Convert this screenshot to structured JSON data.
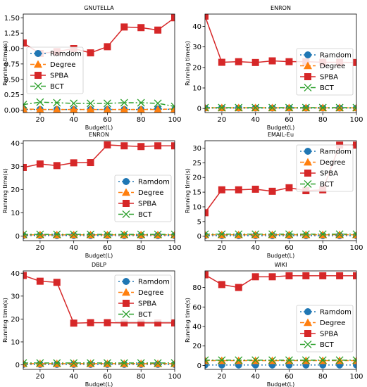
{
  "chart_data": [
    {
      "type": "line",
      "title": "GNUTELLA",
      "xlabel": "Budget(L)",
      "ylabel": "Running time(s)",
      "xlim": [
        10,
        100
      ],
      "ylim": [
        -0.04,
        1.56
      ],
      "x_ticks": [
        20,
        40,
        60,
        80,
        100
      ],
      "y_ticks": [
        0.0,
        0.25,
        0.5,
        0.75,
        1.0,
        1.25,
        1.5
      ],
      "y_tick_labels": [
        "0.00",
        "0.25",
        "0.50",
        "0.75",
        "1.00",
        "1.25",
        "1.50"
      ],
      "legend": "center-left",
      "x": [
        10,
        20,
        30,
        40,
        50,
        60,
        70,
        80,
        90,
        100
      ],
      "series": [
        {
          "name": "Ramdom",
          "values": [
            0.01,
            0.01,
            0.01,
            0.01,
            0.01,
            0.01,
            0.01,
            0.01,
            0.02,
            0.01
          ]
        },
        {
          "name": "Degree",
          "values": [
            0.02,
            0.01,
            0.01,
            0.01,
            0.01,
            0.01,
            0.01,
            0.01,
            0.01,
            0.02
          ]
        },
        {
          "name": "SPBA",
          "values": [
            1.09,
            0.92,
            0.95,
            1.0,
            0.93,
            1.03,
            1.35,
            1.34,
            1.3,
            1.5
          ]
        },
        {
          "name": "BCT",
          "values": [
            0.09,
            0.13,
            0.12,
            0.11,
            0.11,
            0.11,
            0.12,
            0.12,
            0.11,
            0.06
          ]
        }
      ]
    },
    {
      "type": "line",
      "title": "ENRON",
      "xlabel": "Budget(L)",
      "ylabel": "Running time(s)",
      "xlim": [
        10,
        100
      ],
      "ylim": [
        -2,
        46
      ],
      "x_ticks": [
        20,
        40,
        60,
        80,
        100
      ],
      "y_ticks": [
        0,
        10,
        20,
        30,
        40
      ],
      "y_tick_labels": [
        "0",
        "10",
        "20",
        "30",
        "40"
      ],
      "legend": "center-right",
      "x": [
        10,
        20,
        30,
        40,
        50,
        60,
        70,
        80,
        90,
        100
      ],
      "series": [
        {
          "name": "Ramdom",
          "values": [
            0.2,
            0.2,
            0.2,
            0.2,
            0.2,
            0.2,
            0.2,
            0.2,
            0.2,
            0.2
          ]
        },
        {
          "name": "Degree",
          "values": [
            0.3,
            0.3,
            0.3,
            0.3,
            0.3,
            0.3,
            0.3,
            0.3,
            0.3,
            0.3
          ]
        },
        {
          "name": "SPBA",
          "values": [
            45,
            22.5,
            22.8,
            22.4,
            23.2,
            22.8,
            22.8,
            22.5,
            22.5,
            22.4
          ]
        },
        {
          "name": "BCT",
          "values": [
            0.4,
            0.4,
            0.4,
            0.4,
            0.4,
            0.4,
            0.4,
            0.4,
            0.4,
            0.4
          ]
        }
      ]
    },
    {
      "type": "line",
      "title": "ENRON",
      "xlabel": "Budget(L)",
      "ylabel": "Running time(s)",
      "xlim": [
        10,
        100
      ],
      "ylim": [
        -2,
        41
      ],
      "x_ticks": [
        20,
        40,
        60,
        80,
        100
      ],
      "y_ticks": [
        0,
        10,
        20,
        30,
        40
      ],
      "y_tick_labels": [
        "0",
        "10",
        "20",
        "30",
        "40"
      ],
      "legend": "center-right",
      "x": [
        10,
        20,
        30,
        40,
        50,
        60,
        70,
        80,
        90,
        100
      ],
      "series": [
        {
          "name": "Ramdom",
          "values": [
            0.2,
            0.2,
            0.2,
            0.2,
            0.2,
            0.2,
            0.2,
            0.2,
            0.2,
            0.2
          ]
        },
        {
          "name": "Degree",
          "values": [
            0.5,
            0.5,
            0.5,
            0.5,
            0.5,
            0.5,
            0.5,
            0.5,
            0.5,
            0.5
          ]
        },
        {
          "name": "SPBA",
          "values": [
            29.5,
            31,
            30.3,
            31.5,
            31.6,
            39.2,
            38.8,
            38.5,
            38.8,
            38.8
          ]
        },
        {
          "name": "BCT",
          "values": [
            0.7,
            0.7,
            0.7,
            0.7,
            0.7,
            0.7,
            0.7,
            0.7,
            0.7,
            0.7
          ]
        }
      ]
    },
    {
      "type": "line",
      "title": "EMAIL-Eu",
      "xlabel": "Budget(L)",
      "ylabel": "Running time(s)",
      "xlim": [
        10,
        100
      ],
      "ylim": [
        -1.5,
        32.5
      ],
      "x_ticks": [
        20,
        40,
        60,
        80,
        100
      ],
      "y_ticks": [
        0,
        5,
        10,
        15,
        20,
        25,
        30
      ],
      "y_tick_labels": [
        "0",
        "5",
        "10",
        "15",
        "20",
        "25",
        "30"
      ],
      "legend": "top-right",
      "x": [
        10,
        20,
        30,
        40,
        50,
        60,
        70,
        80,
        90,
        100
      ],
      "series": [
        {
          "name": "Ramdom",
          "values": [
            0.2,
            0.2,
            0.2,
            0.2,
            0.2,
            0.2,
            0.2,
            0.2,
            0.2,
            0.2
          ]
        },
        {
          "name": "Degree",
          "values": [
            0.5,
            0.5,
            0.5,
            0.5,
            0.5,
            0.5,
            0.5,
            0.5,
            0.5,
            0.5
          ]
        },
        {
          "name": "SPBA",
          "values": [
            8,
            15.8,
            15.8,
            16,
            15.3,
            16.5,
            15.5,
            15.8,
            31,
            31
          ]
        },
        {
          "name": "BCT",
          "values": [
            0.7,
            0.7,
            0.7,
            0.7,
            0.7,
            0.7,
            0.7,
            0.7,
            0.7,
            0.7
          ]
        }
      ]
    },
    {
      "type": "line",
      "title": "DBLP",
      "xlabel": "Budget(L)",
      "ylabel": "Running time(s)",
      "xlim": [
        10,
        100
      ],
      "ylim": [
        -2,
        41
      ],
      "x_ticks": [
        20,
        40,
        60,
        80,
        100
      ],
      "y_ticks": [
        0,
        10,
        20,
        30,
        40
      ],
      "y_tick_labels": [
        "0",
        "10",
        "20",
        "30",
        "40"
      ],
      "legend": "top-right",
      "x": [
        10,
        20,
        30,
        40,
        50,
        60,
        70,
        80,
        90,
        100
      ],
      "series": [
        {
          "name": "Ramdom",
          "values": [
            0.2,
            0.2,
            0.2,
            0.2,
            0.2,
            0.2,
            0.2,
            0.2,
            0.2,
            0.2
          ]
        },
        {
          "name": "Degree",
          "values": [
            0.5,
            0.5,
            0.5,
            0.5,
            0.5,
            0.5,
            0.5,
            0.5,
            0.5,
            0.5
          ]
        },
        {
          "name": "SPBA",
          "values": [
            39,
            36.5,
            36,
            18.2,
            18.4,
            18.4,
            18.3,
            18.3,
            18.3,
            18.3
          ]
        },
        {
          "name": "BCT",
          "values": [
            0.8,
            0.8,
            0.8,
            0.8,
            0.8,
            0.8,
            0.8,
            0.8,
            0.8,
            0.8
          ]
        }
      ]
    },
    {
      "type": "line",
      "title": "WIKI",
      "xlabel": "Budget(L)",
      "ylabel": "Running time(s)",
      "xlim": [
        10,
        100
      ],
      "ylim": [
        -4,
        97
      ],
      "x_ticks": [
        20,
        40,
        60,
        80,
        100
      ],
      "y_ticks": [
        0,
        20,
        40,
        60,
        80
      ],
      "y_tick_labels": [
        "0",
        "20",
        "40",
        "60",
        "80"
      ],
      "legend": "center-right",
      "x": [
        10,
        20,
        30,
        40,
        50,
        60,
        70,
        80,
        90,
        100
      ],
      "series": [
        {
          "name": "Ramdom",
          "values": [
            0.5,
            0.5,
            0.5,
            0.5,
            0.5,
            0.5,
            0.5,
            0.5,
            0.5,
            0.5
          ]
        },
        {
          "name": "Degree",
          "values": [
            5,
            5,
            5,
            5,
            5,
            5,
            5,
            5,
            5,
            5
          ]
        },
        {
          "name": "SPBA",
          "values": [
            93,
            83,
            80,
            91,
            91,
            92,
            92,
            92,
            92,
            92
          ]
        },
        {
          "name": "BCT",
          "values": [
            5.5,
            5.5,
            5.5,
            5.5,
            5.5,
            5.5,
            5.5,
            5.5,
            5.5,
            5.5
          ]
        }
      ]
    }
  ],
  "series_styles": [
    {
      "color": "#1f77b4",
      "marker": "circle",
      "dash": "2,3"
    },
    {
      "color": "#ff7f0e",
      "marker": "triangle",
      "dash": "6,3"
    },
    {
      "color": "#d62728",
      "marker": "square",
      "dash": ""
    },
    {
      "color": "#2ca02c",
      "marker": "x",
      "dash": "7,3,2,3"
    }
  ]
}
